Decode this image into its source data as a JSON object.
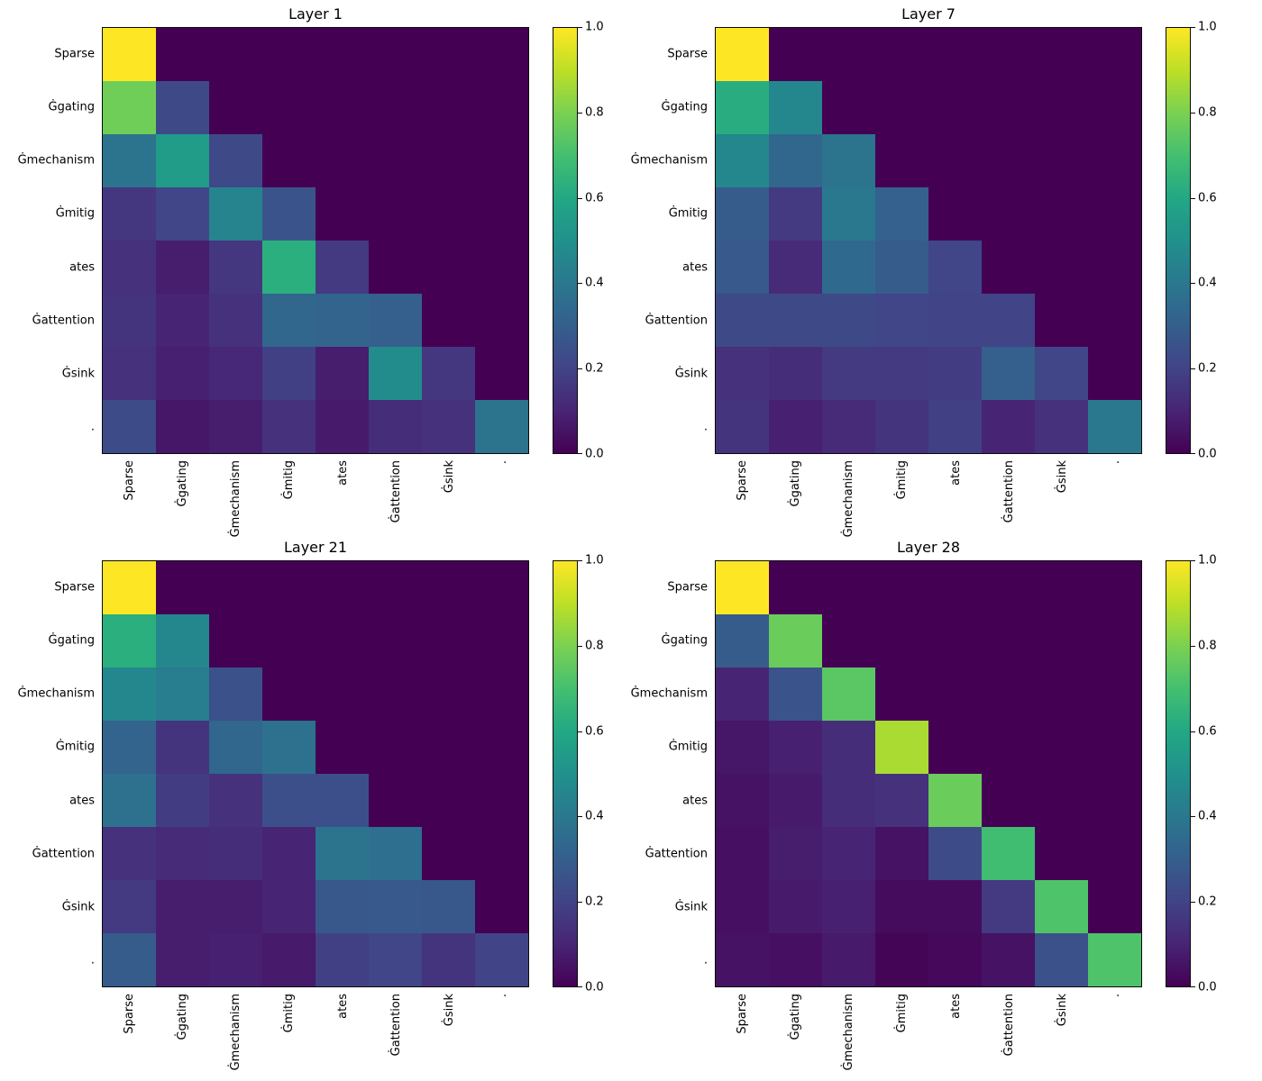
{
  "chart_data": [
    {
      "type": "heatmap",
      "title": "Layer 1",
      "colormap": "viridis",
      "vmin": 0.0,
      "vmax": 1.0,
      "x_labels": [
        "Sparse",
        "Ġgating",
        "Ġmechanism",
        "Ġmitig",
        "ates",
        "Ġattention",
        "Ġsink",
        "."
      ],
      "y_labels": [
        "Sparse",
        "Ġgating",
        "Ġmechanism",
        "Ġmitig",
        "ates",
        "Ġattention",
        "Ġsink",
        "."
      ],
      "colorbar_ticks": [
        "1.0",
        "0.8",
        "0.6",
        "0.4",
        "0.2",
        "0.0"
      ],
      "matrix": [
        [
          1.0,
          0.0,
          0.0,
          0.0,
          0.0,
          0.0,
          0.0,
          0.0
        ],
        [
          0.78,
          0.22,
          0.0,
          0.0,
          0.0,
          0.0,
          0.0,
          0.0
        ],
        [
          0.38,
          0.55,
          0.22,
          0.0,
          0.0,
          0.0,
          0.0,
          0.0
        ],
        [
          0.16,
          0.21,
          0.45,
          0.26,
          0.0,
          0.0,
          0.0,
          0.0
        ],
        [
          0.14,
          0.08,
          0.16,
          0.63,
          0.17,
          0.0,
          0.0,
          0.0
        ],
        [
          0.15,
          0.1,
          0.14,
          0.33,
          0.32,
          0.3,
          0.0,
          0.0
        ],
        [
          0.14,
          0.09,
          0.11,
          0.19,
          0.08,
          0.48,
          0.16,
          0.0
        ],
        [
          0.23,
          0.06,
          0.08,
          0.14,
          0.07,
          0.13,
          0.14,
          0.38
        ]
      ]
    },
    {
      "type": "heatmap",
      "title": "Layer 7",
      "colormap": "viridis",
      "vmin": 0.0,
      "vmax": 1.0,
      "x_labels": [
        "Sparse",
        "Ġgating",
        "Ġmechanism",
        "Ġmitig",
        "ates",
        "Ġattention",
        "Ġsink",
        "."
      ],
      "y_labels": [
        "Sparse",
        "Ġgating",
        "Ġmechanism",
        "Ġmitig",
        "ates",
        "Ġattention",
        "Ġsink",
        "."
      ],
      "colorbar_ticks": [
        "1.0",
        "0.8",
        "0.6",
        "0.4",
        "0.2",
        "0.0"
      ],
      "matrix": [
        [
          1.0,
          0.0,
          0.0,
          0.0,
          0.0,
          0.0,
          0.0,
          0.0
        ],
        [
          0.62,
          0.46,
          0.0,
          0.0,
          0.0,
          0.0,
          0.0,
          0.0
        ],
        [
          0.46,
          0.33,
          0.38,
          0.0,
          0.0,
          0.0,
          0.0,
          0.0
        ],
        [
          0.29,
          0.17,
          0.4,
          0.31,
          0.0,
          0.0,
          0.0,
          0.0
        ],
        [
          0.28,
          0.12,
          0.34,
          0.29,
          0.21,
          0.0,
          0.0,
          0.0
        ],
        [
          0.22,
          0.22,
          0.22,
          0.21,
          0.2,
          0.2,
          0.0,
          0.0
        ],
        [
          0.14,
          0.13,
          0.17,
          0.17,
          0.18,
          0.3,
          0.21,
          0.0
        ],
        [
          0.15,
          0.09,
          0.12,
          0.15,
          0.19,
          0.1,
          0.14,
          0.4
        ]
      ]
    },
    {
      "type": "heatmap",
      "title": "Layer 21",
      "colormap": "viridis",
      "vmin": 0.0,
      "vmax": 1.0,
      "x_labels": [
        "Sparse",
        "Ġgating",
        "Ġmechanism",
        "Ġmitig",
        "ates",
        "Ġattention",
        "Ġsink",
        "."
      ],
      "y_labels": [
        "Sparse",
        "Ġgating",
        "Ġmechanism",
        "Ġmitig",
        "ates",
        "Ġattention",
        "Ġsink",
        "."
      ],
      "colorbar_ticks": [
        "1.0",
        "0.8",
        "0.6",
        "0.4",
        "0.2",
        "0.0"
      ],
      "matrix": [
        [
          1.0,
          0.0,
          0.0,
          0.0,
          0.0,
          0.0,
          0.0,
          0.0
        ],
        [
          0.63,
          0.46,
          0.0,
          0.0,
          0.0,
          0.0,
          0.0,
          0.0
        ],
        [
          0.46,
          0.42,
          0.25,
          0.0,
          0.0,
          0.0,
          0.0,
          0.0
        ],
        [
          0.32,
          0.15,
          0.33,
          0.37,
          0.0,
          0.0,
          0.0,
          0.0
        ],
        [
          0.37,
          0.18,
          0.14,
          0.24,
          0.24,
          0.0,
          0.0,
          0.0
        ],
        [
          0.14,
          0.12,
          0.13,
          0.1,
          0.38,
          0.36,
          0.0,
          0.0
        ],
        [
          0.17,
          0.08,
          0.08,
          0.1,
          0.27,
          0.28,
          0.27,
          0.0
        ],
        [
          0.29,
          0.08,
          0.09,
          0.07,
          0.19,
          0.21,
          0.15,
          0.2
        ]
      ]
    },
    {
      "type": "heatmap",
      "title": "Layer 28",
      "colormap": "viridis",
      "vmin": 0.0,
      "vmax": 1.0,
      "x_labels": [
        "Sparse",
        "Ġgating",
        "Ġmechanism",
        "Ġmitig",
        "ates",
        "Ġattention",
        "Ġsink",
        "."
      ],
      "y_labels": [
        "Sparse",
        "Ġgating",
        "Ġmechanism",
        "Ġmitig",
        "ates",
        "Ġattention",
        "Ġsink",
        "."
      ],
      "colorbar_ticks": [
        "1.0",
        "0.8",
        "0.6",
        "0.4",
        "0.2",
        "0.0"
      ],
      "matrix": [
        [
          1.0,
          0.0,
          0.0,
          0.0,
          0.0,
          0.0,
          0.0,
          0.0
        ],
        [
          0.29,
          0.77,
          0.0,
          0.0,
          0.0,
          0.0,
          0.0,
          0.0
        ],
        [
          0.1,
          0.26,
          0.74,
          0.0,
          0.0,
          0.0,
          0.0,
          0.0
        ],
        [
          0.06,
          0.09,
          0.13,
          0.87,
          0.0,
          0.0,
          0.0,
          0.0
        ],
        [
          0.05,
          0.07,
          0.13,
          0.14,
          0.77,
          0.0,
          0.0,
          0.0
        ],
        [
          0.04,
          0.08,
          0.1,
          0.05,
          0.23,
          0.69,
          0.0,
          0.0
        ],
        [
          0.04,
          0.07,
          0.09,
          0.03,
          0.03,
          0.17,
          0.72,
          0.0
        ],
        [
          0.05,
          0.04,
          0.07,
          0.01,
          0.02,
          0.05,
          0.25,
          0.72
        ]
      ]
    }
  ],
  "colors": {
    "background": "#ffffff",
    "text": "#000000",
    "cmap_zero": "#440154",
    "cmap_max": "#fde725"
  }
}
